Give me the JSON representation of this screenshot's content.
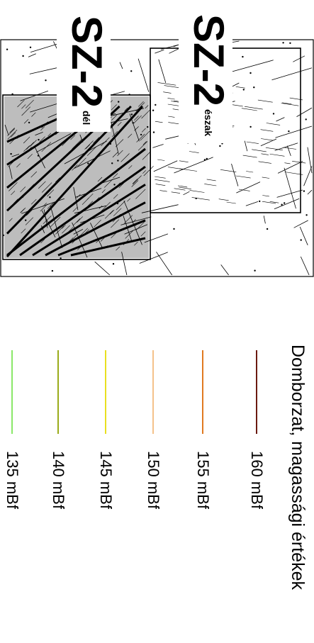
{
  "map": {
    "sheets": [
      {
        "code": "SZ-2",
        "subtitle": "észak"
      },
      {
        "code": "SZ-2",
        "subtitle": "dél"
      }
    ],
    "highlight_color": "#bdbdbd"
  },
  "legend": {
    "title": "Domborzat, magassági értékek",
    "items": [
      {
        "label": "160 mBf",
        "color": "#6b1a10"
      },
      {
        "label": "155 mBf",
        "color": "#e07a20"
      },
      {
        "label": "150 mBf",
        "color": "#f4c28a"
      },
      {
        "label": "145 mBf",
        "color": "#e8e020"
      },
      {
        "label": "140 mBf",
        "color": "#9aab1a"
      },
      {
        "label": "135 mBf",
        "color": "#8ae868"
      }
    ]
  }
}
